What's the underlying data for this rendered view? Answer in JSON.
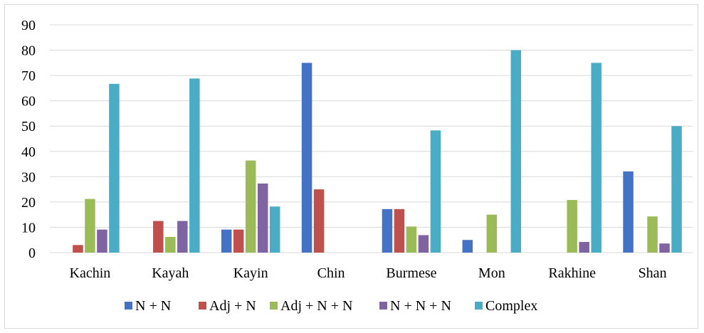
{
  "chart_data": {
    "type": "bar",
    "categories": [
      "Kachin",
      "Kayah",
      "Kayin",
      "Chin",
      "Burmese",
      "Mon",
      "Rakhine",
      "Shan"
    ],
    "series": [
      {
        "name": "N + N",
        "color": "#4472C4",
        "values": [
          0,
          0,
          9.1,
          75,
          17.2,
          5,
          0,
          32.1
        ]
      },
      {
        "name": "Adj + N",
        "color": "#C0504D",
        "values": [
          3,
          12.5,
          9.1,
          25,
          17.2,
          0,
          0,
          0
        ]
      },
      {
        "name": "Adj + N + N",
        "color": "#9BBB59",
        "values": [
          21.2,
          6.2,
          36.4,
          0,
          10.3,
          15,
          20.8,
          14.3
        ]
      },
      {
        "name": "N + N + N",
        "color": "#8064A2",
        "values": [
          9.1,
          12.5,
          27.3,
          0,
          6.9,
          0,
          4.2,
          3.6
        ]
      },
      {
        "name": "Complex",
        "color": "#4BACC6",
        "values": [
          66.7,
          68.8,
          18.2,
          0,
          48.3,
          80,
          75,
          50
        ]
      }
    ],
    "ylim": [
      0,
      90
    ],
    "yticks": [
      "0",
      "10",
      "20",
      "30",
      "40",
      "50",
      "60",
      "70",
      "80",
      "90"
    ],
    "grid": true,
    "legend": "bottom"
  }
}
